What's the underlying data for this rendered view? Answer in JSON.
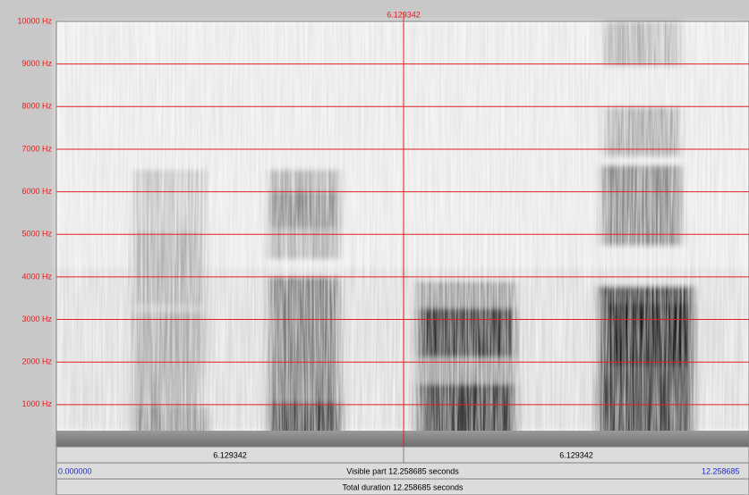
{
  "header": {
    "cursor_time": "6.129342"
  },
  "frequency_labels": [
    "1000 Hz",
    "2000 Hz",
    "3000 Hz",
    "4000 Hz",
    "5000 Hz",
    "6000 Hz",
    "7000 Hz",
    "8000 Hz",
    "9000 Hz",
    "10000 Hz"
  ],
  "time_bar": {
    "left_segment": "6.129342",
    "right_segment": "6.129342"
  },
  "visible_bar": {
    "start": "0.000000",
    "label": "Visible part 12.258685 seconds",
    "end": "12.258685"
  },
  "total_bar": {
    "label": "Total duration 12.258685 seconds"
  }
}
